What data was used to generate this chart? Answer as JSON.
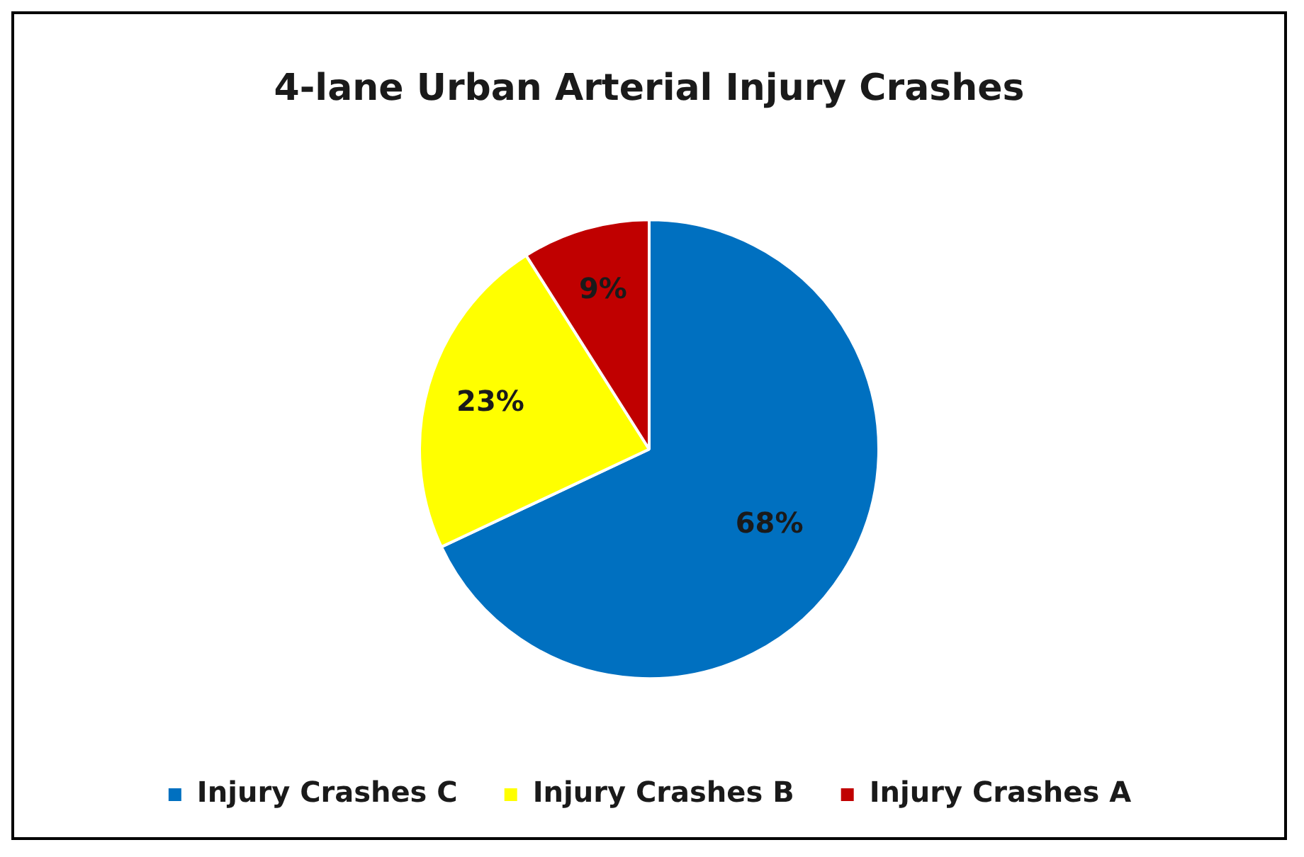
{
  "chart_data": {
    "type": "pie",
    "title": "4-lane Urban Arterial Injury Crashes",
    "categories": [
      "Injury Crashes C",
      "Injury Crashes B",
      "Injury Crashes A"
    ],
    "values": [
      68,
      23,
      9
    ],
    "colors": [
      "#0070c0",
      "#ffff00",
      "#c00000"
    ],
    "value_labels": [
      "68%",
      "23%",
      "9%"
    ],
    "legend": "bottom"
  }
}
